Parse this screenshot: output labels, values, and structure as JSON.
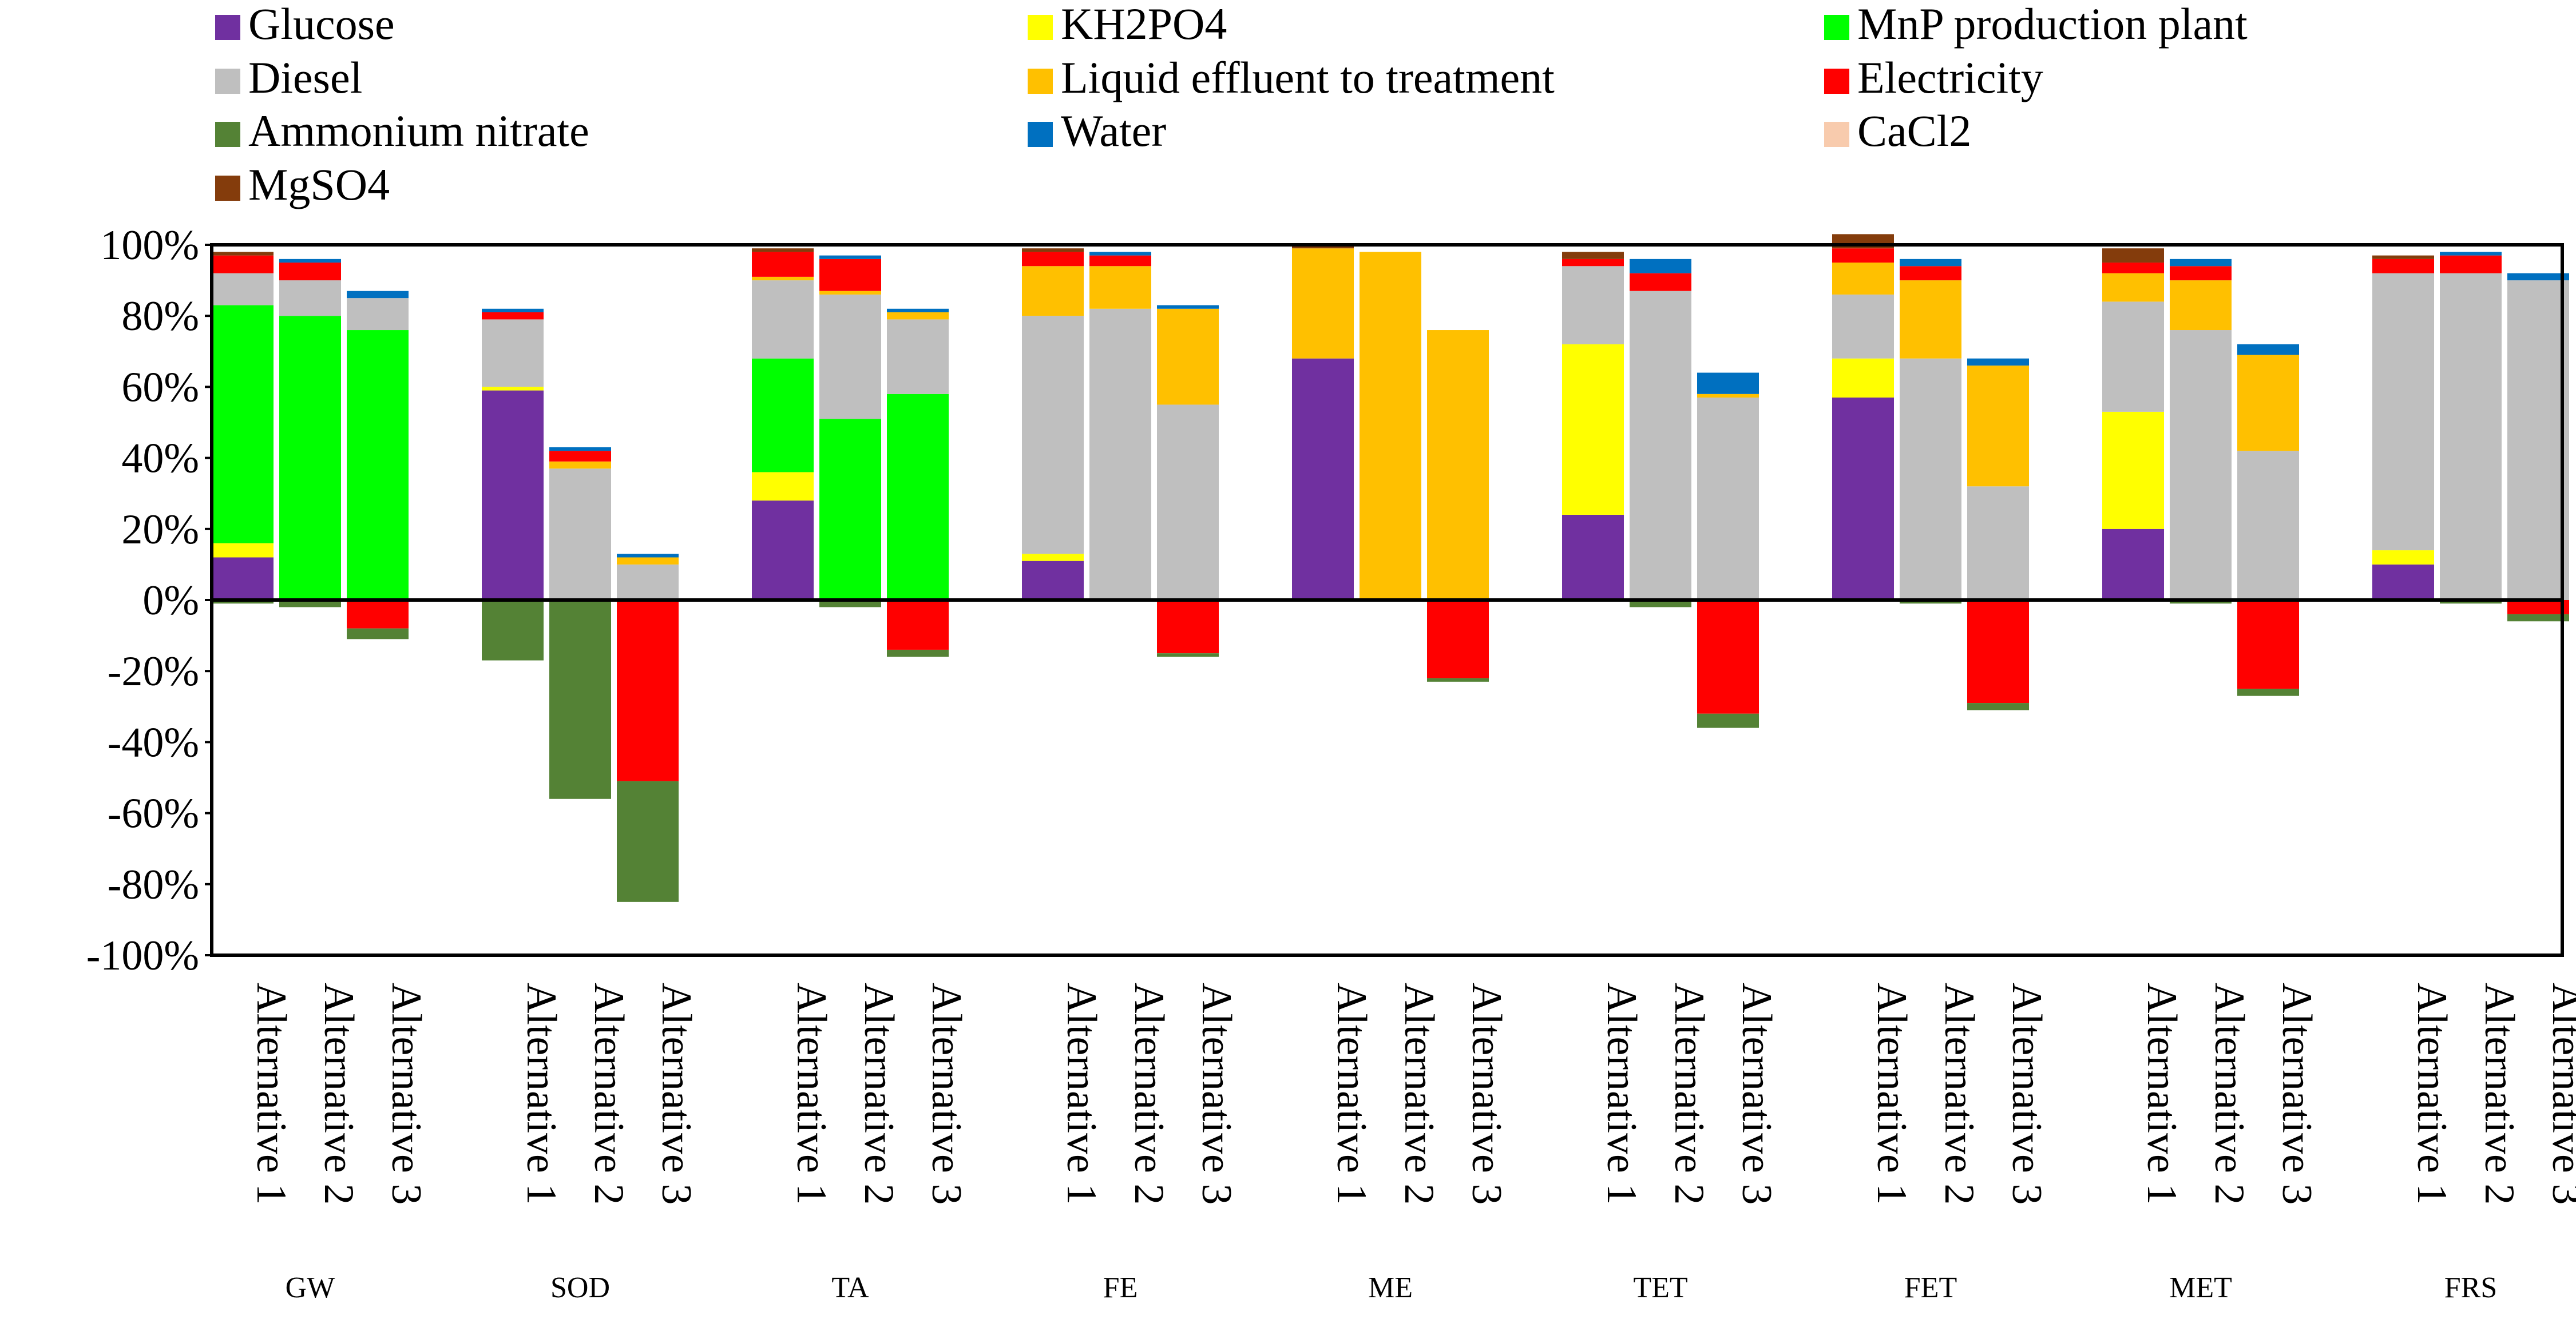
{
  "chart_data": {
    "type": "bar",
    "stacked": true,
    "title": "",
    "xlabel": "",
    "ylabel": "",
    "ylim": [
      -100,
      100
    ],
    "yticks": [
      "-100%",
      "-80%",
      "-60%",
      "-40%",
      "-20%",
      "0%",
      "20%",
      "40%",
      "60%",
      "80%",
      "100%"
    ],
    "grid": false,
    "legend_position": "top",
    "groups": [
      "GW",
      "SOD",
      "TA",
      "FE",
      "ME",
      "TET",
      "FET",
      "MET",
      "FRS"
    ],
    "alternatives": [
      "Alternative 1",
      "Alternative 2",
      "Alternative 3"
    ],
    "series": [
      {
        "name": "Glucose",
        "color": "#7030A0",
        "values": [
          12,
          0,
          0,
          59,
          0,
          0,
          28,
          0,
          0,
          11,
          0,
          0,
          68,
          0,
          0,
          24,
          0,
          0,
          57,
          0,
          0,
          20,
          0,
          0,
          10,
          0,
          0
        ]
      },
      {
        "name": "KH2PO4",
        "color": "#FFFF00",
        "values": [
          4,
          0,
          0,
          1,
          0,
          0,
          8,
          0,
          0,
          2,
          0,
          0,
          0,
          0,
          0,
          48,
          0,
          0,
          11,
          0,
          0,
          33,
          0,
          0,
          4,
          0,
          0
        ]
      },
      {
        "name": "MnP production plant",
        "color": "#00FF00",
        "values": [
          67,
          80,
          76,
          0,
          0,
          0,
          32,
          51,
          58,
          0,
          0,
          0,
          0,
          0,
          0,
          0,
          0,
          0,
          0,
          0,
          0,
          0,
          0,
          0,
          0,
          0,
          0
        ]
      },
      {
        "name": "Diesel",
        "color": "#BFBFBF",
        "values": [
          9,
          10,
          9,
          19,
          37,
          10,
          22,
          35,
          21,
          67,
          82,
          55,
          0,
          0,
          0,
          22,
          87,
          57,
          18,
          68,
          32,
          31,
          76,
          42,
          78,
          92,
          90
        ]
      },
      {
        "name": "Liquid effluent to treatment",
        "color": "#FFC000",
        "values": [
          0,
          0,
          0,
          0,
          2,
          2,
          1,
          1,
          2,
          14,
          12,
          27,
          31,
          98,
          76,
          0,
          0,
          1,
          9,
          22,
          34,
          8,
          14,
          27,
          0,
          0,
          0
        ]
      },
      {
        "name": "Electricity",
        "color": "#FF0000",
        "values": [
          5,
          5,
          -8,
          2,
          3,
          -51,
          7,
          9,
          -14,
          4,
          3,
          -15,
          0,
          0,
          -22,
          2,
          5,
          -32,
          4,
          4,
          -29,
          3,
          4,
          -25,
          4,
          5,
          -4
        ]
      },
      {
        "name": "Ammonium nitrate",
        "color": "#548235",
        "values": [
          -1,
          -2,
          -3,
          -17,
          -56,
          -34,
          0,
          -2,
          -2,
          0,
          0,
          -1,
          0,
          0,
          -1,
          0,
          -2,
          -4,
          0,
          -1,
          -2,
          0,
          -1,
          -2,
          0,
          -1,
          -2
        ]
      },
      {
        "name": "Water",
        "color": "#0070C0",
        "values": [
          0,
          1,
          2,
          1,
          1,
          1,
          0,
          1,
          1,
          0,
          1,
          1,
          0,
          0,
          0,
          0,
          4,
          6,
          0,
          2,
          2,
          0,
          2,
          3,
          0,
          1,
          2
        ]
      },
      {
        "name": "CaCl2",
        "color": "#F8CBAD",
        "values": [
          0,
          0,
          0,
          0,
          0,
          0,
          0,
          0,
          0,
          0,
          0,
          0,
          0,
          0,
          0,
          0,
          0,
          0,
          0,
          0,
          0,
          0,
          0,
          0,
          0,
          0,
          0
        ]
      },
      {
        "name": "MgSO4",
        "color": "#843C0C",
        "values": [
          1,
          0,
          0,
          0,
          0,
          0,
          1,
          0,
          0,
          1,
          0,
          0,
          1,
          0,
          0,
          2,
          0,
          0,
          4,
          0,
          0,
          4,
          0,
          0,
          1,
          0,
          0
        ]
      }
    ],
    "legend_layout": [
      [
        "Glucose",
        "KH2PO4",
        "MnP production plant"
      ],
      [
        "Diesel",
        "Liquid effluent to treatment",
        "Electricity"
      ],
      [
        "Ammonium nitrate",
        "Water",
        "CaCl2"
      ],
      [
        "MgSO4"
      ]
    ]
  }
}
